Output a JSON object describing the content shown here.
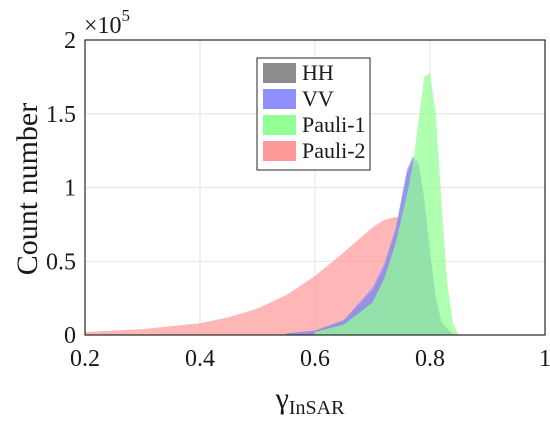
{
  "chart_data": {
    "type": "area",
    "xlabel": "γ",
    "xlabel_subscript": "InSAR",
    "ylabel": "Count number",
    "xlim": [
      0.2,
      1.0
    ],
    "ylim": [
      0,
      200000
    ],
    "x_ticks": [
      "0.2",
      "0.4",
      "0.6",
      "0.8",
      "1"
    ],
    "y_ticks": [
      "0",
      "0.5",
      "1",
      "1.5",
      "2"
    ],
    "y_multiplier": "×10",
    "y_multiplier_exponent": "5",
    "grid": true,
    "legend_position": "top-center",
    "series": [
      {
        "name": "Pauli-2",
        "color": "#ff9a9a",
        "x": [
          0.2,
          0.3,
          0.4,
          0.45,
          0.5,
          0.55,
          0.6,
          0.65,
          0.7,
          0.72,
          0.74,
          0.75,
          0.76,
          0.78,
          0.8,
          0.82,
          0.84,
          0.86
        ],
        "y": [
          2000,
          4000,
          8000,
          12000,
          18000,
          27000,
          40000,
          56000,
          73000,
          78000,
          80000,
          79000,
          74000,
          55000,
          25000,
          7000,
          1000,
          0
        ]
      },
      {
        "name": "HH",
        "color": "#8c8c8c",
        "x": [
          0.55,
          0.6,
          0.65,
          0.7,
          0.72,
          0.74,
          0.75,
          0.76,
          0.77,
          0.78,
          0.79,
          0.8,
          0.81,
          0.82,
          0.84
        ],
        "y": [
          1000,
          3000,
          10000,
          30000,
          45000,
          70000,
          90000,
          110000,
          118000,
          115000,
          90000,
          55000,
          25000,
          8000,
          0
        ]
      },
      {
        "name": "VV",
        "color": "#8f8fff",
        "x": [
          0.55,
          0.6,
          0.65,
          0.7,
          0.72,
          0.74,
          0.75,
          0.76,
          0.77,
          0.78,
          0.79,
          0.8,
          0.81,
          0.82,
          0.84
        ],
        "y": [
          1000,
          3000,
          10000,
          32000,
          48000,
          72000,
          92000,
          112000,
          121000,
          117000,
          93000,
          57000,
          26000,
          9000,
          0
        ]
      },
      {
        "name": "Pauli-1",
        "color": "#93ff93",
        "x": [
          0.6,
          0.65,
          0.7,
          0.72,
          0.74,
          0.76,
          0.77,
          0.78,
          0.79,
          0.8,
          0.81,
          0.82,
          0.83,
          0.84,
          0.85
        ],
        "y": [
          2000,
          7000,
          22000,
          38000,
          62000,
          95000,
          115000,
          145000,
          175000,
          178000,
          150000,
          90000,
          35000,
          8000,
          0
        ]
      }
    ]
  }
}
